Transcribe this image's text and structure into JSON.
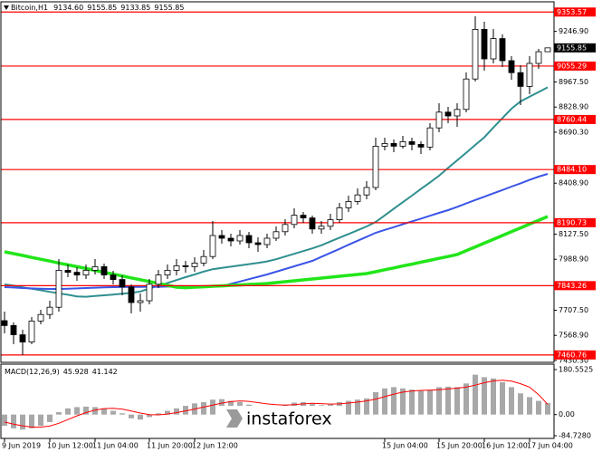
{
  "watermark": "instaforex",
  "chart_data": [
    {
      "type": "candlestick",
      "title": "Bitcoin,H1",
      "ohlc_label": [
        "9134.60",
        "9155.85",
        "9133.85",
        "9155.85"
      ],
      "categories": [
        "9 Jun 2019",
        null,
        null,
        null,
        null,
        "10 Jun 12:00",
        null,
        null,
        null,
        null,
        "11 Jun 04:00",
        null,
        null,
        null,
        null,
        null,
        "11 Jun 20:00",
        null,
        null,
        null,
        null,
        "12 Jun 12:00",
        null,
        null,
        null,
        null,
        null,
        null,
        null,
        null,
        null,
        null,
        null,
        null,
        null,
        null,
        null,
        null,
        null,
        null,
        null,
        null,
        "15 Jun 04:00",
        null,
        null,
        null,
        null,
        null,
        "15 Jun 20:00",
        null,
        null,
        null,
        null,
        "16 Jun 12:00",
        null,
        null,
        null,
        null,
        "17 Jun 04:00",
        null,
        null
      ],
      "open": [
        7650,
        7623,
        7572,
        7532,
        7648,
        7684,
        7724,
        7928,
        7917,
        7902,
        7928,
        7948,
        7902,
        7877,
        7836,
        7750,
        7760,
        7851,
        7902,
        7928,
        7953,
        7948,
        7968,
        8004,
        8120,
        8105,
        8090,
        8120,
        8080,
        8070,
        8105,
        8141,
        8181,
        8232,
        8217,
        8156,
        8171,
        8207,
        8273,
        8308,
        8344,
        8385,
        8613,
        8628,
        8613,
        8638,
        8623,
        8608,
        8714,
        8801,
        8780,
        8816,
        8984,
        9258,
        9095,
        9207,
        9085,
        9019,
        8943,
        9070,
        9134.6
      ],
      "high": [
        7700,
        7640,
        7600,
        7670,
        7710,
        7760,
        7990,
        7960,
        7945,
        7960,
        7990,
        7965,
        7925,
        7900,
        7850,
        7800,
        7880,
        7930,
        7960,
        7990,
        7980,
        8000,
        8040,
        8200,
        8150,
        8130,
        8150,
        8140,
        8110,
        8130,
        8170,
        8210,
        8270,
        8250,
        8230,
        8200,
        8240,
        8300,
        8340,
        8380,
        8420,
        8660,
        8660,
        8650,
        8670,
        8660,
        8640,
        8740,
        8850,
        8830,
        8850,
        9020,
        9330,
        9300,
        9260,
        9230,
        9110,
        9060,
        9110,
        9150,
        9155.85
      ],
      "low": [
        7580,
        7520,
        7460,
        7520,
        7630,
        7660,
        7700,
        7890,
        7870,
        7880,
        7905,
        7880,
        7850,
        7790,
        7690,
        7700,
        7740,
        7830,
        7880,
        7900,
        7915,
        7920,
        7950,
        7990,
        8075,
        8060,
        8070,
        8050,
        8030,
        8050,
        8090,
        8120,
        8160,
        8190,
        8130,
        8130,
        8150,
        8190,
        8250,
        8290,
        8320,
        8370,
        8590,
        8580,
        8600,
        8590,
        8570,
        8590,
        8690,
        8740,
        8720,
        8800,
        8970,
        9030,
        9070,
        9050,
        8980,
        8840,
        8900,
        9040,
        9133.85
      ],
      "close": [
        7623,
        7572,
        7532,
        7648,
        7684,
        7724,
        7928,
        7917,
        7902,
        7928,
        7948,
        7902,
        7877,
        7836,
        7750,
        7760,
        7851,
        7902,
        7928,
        7953,
        7948,
        7968,
        8004,
        8120,
        8105,
        8090,
        8120,
        8080,
        8070,
        8105,
        8141,
        8181,
        8232,
        8217,
        8156,
        8171,
        8207,
        8273,
        8308,
        8344,
        8385,
        8613,
        8628,
        8613,
        8638,
        8623,
        8608,
        8714,
        8801,
        8780,
        8816,
        8984,
        9258,
        9095,
        9207,
        9085,
        9019,
        8943,
        9070,
        9134.6,
        9155.85
      ],
      "up_color": "#ffffff",
      "down_color": "#000000",
      "lines": [
        {
          "color": "#2f8f8f",
          "values": [
            7851,
            7843,
            7834,
            7826,
            7818,
            7809,
            7801,
            7793,
            7784,
            7782,
            7786,
            7790,
            7794,
            7799,
            7803,
            7811,
            7827,
            7843,
            7858,
            7874,
            7890,
            7905,
            7921,
            7934,
            7941,
            7948,
            7955,
            7962,
            7969,
            7977,
            7989,
            8004,
            8019,
            8034,
            8049,
            8066,
            8087,
            8108,
            8128,
            8149,
            8170,
            8195,
            8231,
            8268,
            8304,
            8340,
            8377,
            8413,
            8450,
            8493,
            8535,
            8577,
            8620,
            8662,
            8716,
            8768,
            8820,
            8860,
            8886,
            8912,
            8938
          ]
        },
        {
          "color": "#3b55e6",
          "values": [
            7835,
            7833,
            7830,
            7828,
            7826,
            7825,
            7825,
            7826,
            7828,
            7830,
            7832,
            7834,
            7835,
            7836,
            7836,
            7836,
            7837,
            7837,
            7838,
            7838,
            7839,
            7839,
            7840,
            7840,
            7840,
            7853,
            7866,
            7879,
            7892,
            7905,
            7920,
            7935,
            7950,
            7965,
            7980,
            8002,
            8024,
            8046,
            8069,
            8091,
            8113,
            8135,
            8151,
            8166,
            8182,
            8198,
            8213,
            8229,
            8245,
            8260,
            8278,
            8297,
            8316,
            8334,
            8353,
            8371,
            8390,
            8408,
            8427,
            8445,
            8460
          ]
        },
        {
          "color": "#22e51a",
          "values": [
            8030,
            8020,
            8010,
            7999,
            7989,
            7979,
            7968,
            7958,
            7948,
            7938,
            7927,
            7917,
            7907,
            7897,
            7886,
            7876,
            7866,
            7856,
            7845,
            7835,
            7832,
            7835,
            7837,
            7840,
            7842,
            7845,
            7847,
            7850,
            7852,
            7855,
            7860,
            7865,
            7870,
            7875,
            7880,
            7885,
            7890,
            7895,
            7900,
            7905,
            7910,
            7920,
            7931,
            7941,
            7952,
            7962,
            7973,
            7983,
            7994,
            8004,
            8015,
            8036,
            8057,
            8078,
            8099,
            8120,
            8141,
            8162,
            8183,
            8204,
            8225
          ]
        }
      ],
      "levels": [
        9353.57,
        9055.29,
        8760.44,
        {
          "value": 8484.1,
          "label": "8484.10"
        },
        8190.73,
        7843.26,
        7460.76
      ],
      "level_color": "#ff0000",
      "ylim": [
        7420,
        9410
      ],
      "yticks": [
        {
          "value": 9246.9,
          "label": "9246.90"
        },
        {
          "value": 8967.5,
          "label": "8967.50"
        },
        {
          "value": 8828.9,
          "label": "8828.90"
        },
        {
          "value": 8690.3,
          "label": "8690.30"
        },
        {
          "value": 8408.9,
          "label": "8408.90"
        },
        {
          "value": 8127.5,
          "label": "8127.50"
        },
        {
          "value": 7988.9,
          "label": "7988.90"
        },
        {
          "value": 7707.5,
          "label": "7707.50"
        },
        {
          "value": 7568.9,
          "label": "7568.90"
        },
        {
          "value": 7430.3,
          "label": "7430.30"
        }
      ]
    },
    {
      "type": "bar",
      "title": "MACD(12,26,9)",
      "series": [
        {
          "kind": "bar",
          "color": "#a8a8a8",
          "values": [
            -45,
            -55,
            -60,
            -55,
            -45,
            -30,
            10,
            25,
            30,
            32,
            30,
            25,
            15,
            5,
            -15,
            -20,
            -10,
            5,
            15,
            25,
            35,
            45,
            50,
            60,
            62,
            55,
            50,
            40,
            35,
            32,
            35,
            40,
            48,
            50,
            42,
            38,
            40,
            50,
            55,
            60,
            65,
            90,
            105,
            110,
            105,
            100,
            95,
            100,
            110,
            112,
            110,
            125,
            160,
            150,
            145,
            130,
            110,
            85,
            70,
            55,
            45.928
          ]
        },
        {
          "kind": "line",
          "color": "#ff0000",
          "values": [
            -30,
            -38,
            -45,
            -50,
            -50,
            -46,
            -35,
            -20,
            -5,
            8,
            18,
            24,
            25,
            22,
            14,
            6,
            0,
            -1,
            2,
            8,
            15,
            22,
            30,
            38,
            46,
            52,
            55,
            53,
            48,
            43,
            40,
            38,
            40,
            43,
            45,
            44,
            42,
            43,
            46,
            50,
            55,
            62,
            72,
            82,
            90,
            95,
            97,
            98,
            100,
            103,
            106,
            110,
            118,
            128,
            135,
            138,
            134,
            124,
            110,
            80,
            41.142
          ]
        }
      ],
      "ylim": [
        -95.6,
        202.4
      ],
      "yticks": [
        180.5525,
        {
          "value": 0,
          "label": "0.00"
        },
        {
          "value": -84.728,
          "label": "-84.7280"
        }
      ]
    }
  ]
}
